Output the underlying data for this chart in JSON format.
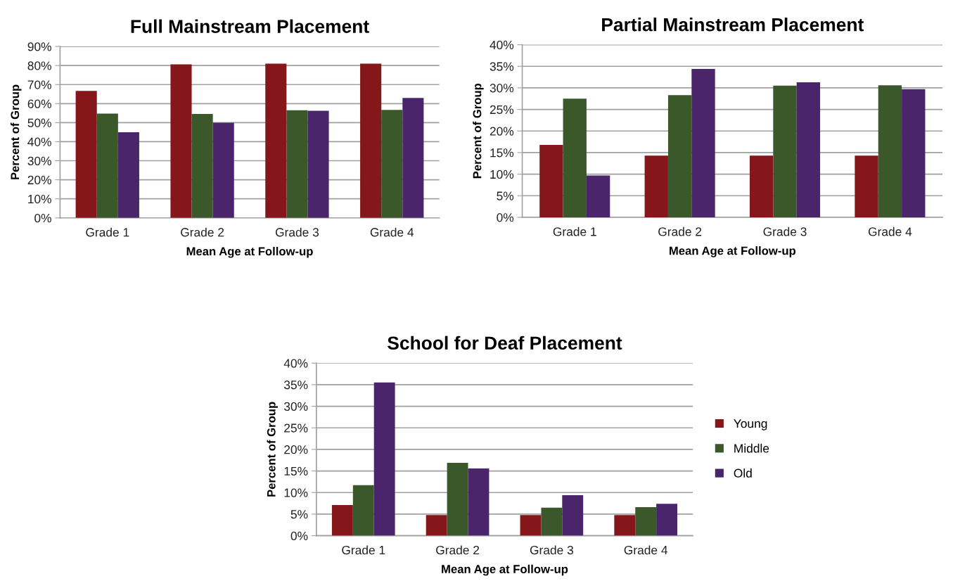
{
  "chart_data": [
    {
      "type": "bar",
      "title": "Full Mainstream Placement",
      "xlabel": "Mean Age at Follow-up",
      "ylabel": "Percent of Group",
      "categories": [
        "Grade 1",
        "Grade 2",
        "Grade 3",
        "Grade 4"
      ],
      "series": [
        {
          "color": "#85161a",
          "values": [
            66.7,
            80.6,
            81,
            81
          ]
        },
        {
          "color": "#3a5829",
          "values": [
            54.8,
            54.6,
            56.5,
            56.7
          ]
        },
        {
          "color": "#4b256b",
          "values": [
            45,
            50,
            56.2,
            63
          ]
        }
      ],
      "ylim": [
        0,
        90
      ],
      "yticks": [
        {
          "value": 0,
          "label": "0%"
        },
        {
          "value": 10,
          "label": "10%"
        },
        {
          "value": 20,
          "label": "20%"
        },
        {
          "value": 30,
          "label": "30%"
        },
        {
          "value": 40,
          "label": "40%"
        },
        {
          "value": 50,
          "label": "50%"
        },
        {
          "value": 60,
          "label": "60%"
        },
        {
          "value": 70,
          "label": "70%"
        },
        {
          "value": 80,
          "label": "80%"
        },
        {
          "value": 90,
          "label": "90%"
        }
      ],
      "grid": "y",
      "legend": false
    },
    {
      "type": "bar",
      "title": "Partial Mainstream Placement",
      "xlabel": "Mean Age at Follow-up",
      "ylabel": "Percent of Group",
      "categories": [
        "Grade 1",
        "Grade 2",
        "Grade 3",
        "Grade 4"
      ],
      "series": [
        {
          "color": "#85161a",
          "values": [
            16.8,
            14.3,
            14.3,
            14.3
          ]
        },
        {
          "color": "#3a5829",
          "values": [
            27.5,
            28.3,
            30.5,
            30.6
          ]
        },
        {
          "color": "#4b256b",
          "values": [
            9.7,
            34.4,
            31.3,
            29.7
          ]
        }
      ],
      "ylim": [
        0,
        40
      ],
      "yticks": [
        {
          "value": 0,
          "label": "0%"
        },
        {
          "value": 5,
          "label": "5%"
        },
        {
          "value": 10,
          "label": "10%"
        },
        {
          "value": 15,
          "label": "15%"
        },
        {
          "value": 20,
          "label": "20%"
        },
        {
          "value": 25,
          "label": "25%"
        },
        {
          "value": 30,
          "label": "30%"
        },
        {
          "value": 35,
          "label": "35%"
        },
        {
          "value": 40,
          "label": "40%"
        }
      ],
      "grid": "y",
      "legend": false
    },
    {
      "type": "bar",
      "title": "School for Deaf Placement",
      "xlabel": "Mean Age at Follow-up",
      "ylabel": "Percent of Group",
      "categories": [
        "Grade 1",
        "Grade 2",
        "Grade 3",
        "Grade 4"
      ],
      "series": [
        {
          "name": "Young",
          "color": "#85161a",
          "values": [
            7.1,
            4.8,
            4.8,
            4.8
          ]
        },
        {
          "name": "Middle",
          "color": "#3a5829",
          "values": [
            11.7,
            16.9,
            6.5,
            6.6
          ]
        },
        {
          "name": "Old",
          "color": "#4b256b",
          "values": [
            35.5,
            15.6,
            9.4,
            7.4
          ]
        }
      ],
      "ylim": [
        0,
        40
      ],
      "yticks": [
        {
          "value": 0,
          "label": "0%"
        },
        {
          "value": 5,
          "label": "5%"
        },
        {
          "value": 10,
          "label": "10%"
        },
        {
          "value": 15,
          "label": "15%"
        },
        {
          "value": 20,
          "label": "20%"
        },
        {
          "value": 25,
          "label": "25%"
        },
        {
          "value": 30,
          "label": "30%"
        },
        {
          "value": 35,
          "label": "35%"
        },
        {
          "value": 40,
          "label": "40%"
        }
      ],
      "grid": "y",
      "legend": "right"
    }
  ]
}
